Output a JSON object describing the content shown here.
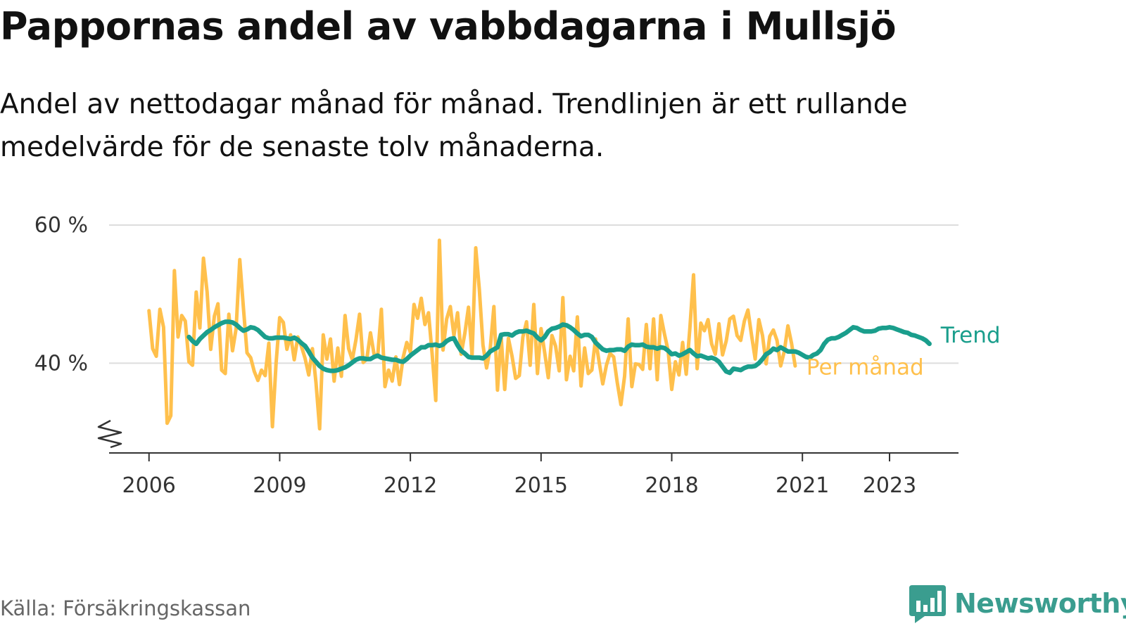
{
  "title": "Pappornas andel av vabbdagarna i Mullsjö",
  "subtitle": "Andel av nettodagar månad för månad. Trendlinjen är ett rullande medelvärde för de senaste tolv månaderna.",
  "source": "Källa: Försäkringskassan",
  "logo": {
    "text": "Newsworthy",
    "icon": "newsworthy-bar-chart-icon",
    "color": "#3a9d8f"
  },
  "colors": {
    "monthly": "#ffc04c",
    "trend": "#1a9e8c",
    "grid": "#dddddd",
    "axis": "#333333"
  },
  "chart_data": {
    "type": "line",
    "xlabel": "",
    "ylabel": "",
    "ylim": [
      27,
      60
    ],
    "xlim": [
      "2005-02",
      "2024-08"
    ],
    "y_ticks": [
      {
        "value": 40,
        "label": "40 %"
      },
      {
        "value": 60,
        "label": "60 %"
      }
    ],
    "x_ticks": [
      {
        "value": "2006-01",
        "label": "2006"
      },
      {
        "value": "2009-01",
        "label": "2009"
      },
      {
        "value": "2012-01",
        "label": "2012"
      },
      {
        "value": "2015-01",
        "label": "2015"
      },
      {
        "value": "2018-01",
        "label": "2018"
      },
      {
        "value": "2021-01",
        "label": "2021"
      },
      {
        "value": "2023-01",
        "label": "2023"
      }
    ],
    "y_axis_break": true,
    "grid": "horizontal",
    "series": [
      {
        "name": "Per månad",
        "start": "2006-01",
        "frequency": "monthly",
        "values": [
          47.6,
          42.1,
          41.0,
          47.8,
          45.2,
          31.3,
          32.4,
          53.4,
          43.8,
          46.9,
          46.1,
          40.2,
          39.7,
          50.3,
          45.1,
          55.2,
          50.3,
          42.0,
          46.8,
          48.6,
          39.0,
          38.5,
          47.1,
          41.8,
          45.0,
          55.0,
          48.0,
          41.5,
          40.8,
          38.8,
          37.5,
          39.0,
          38.2,
          42.9,
          30.8,
          40.0,
          46.6,
          45.9,
          42.0,
          44.1,
          40.5,
          43.8,
          42.4,
          40.7,
          38.3,
          42.1,
          37.2,
          30.5,
          44.1,
          40.6,
          43.5,
          37.4,
          42.2,
          38.1,
          46.9,
          42.1,
          40.5,
          43.4,
          47.1,
          40.1,
          40.6,
          44.4,
          41.3,
          41.0,
          47.8,
          36.6,
          39.0,
          37.4,
          40.9,
          36.9,
          40.8,
          43.0,
          41.6,
          48.5,
          46.5,
          49.4,
          45.6,
          47.3,
          41.3,
          34.6,
          57.8,
          41.9,
          46.4,
          48.2,
          44.0,
          47.3,
          41.3,
          44.3,
          48.1,
          41.0,
          56.7,
          50.7,
          42.6,
          39.3,
          42.1,
          48.2,
          36.1,
          43.8,
          36.2,
          43.6,
          41.0,
          37.8,
          38.2,
          43.8,
          46.0,
          39.7,
          48.5,
          38.5,
          45.0,
          41.5,
          37.9,
          44.0,
          42.5,
          38.9,
          49.5,
          37.6,
          41.0,
          38.9,
          46.7,
          36.7,
          42.2,
          38.5,
          39.0,
          43.5,
          40.2,
          37.0,
          39.7,
          41.4,
          40.9,
          37.2,
          34.0,
          38.1,
          46.4,
          36.6,
          39.9,
          39.8,
          39.1,
          45.6,
          39.2,
          46.4,
          37.6,
          46.9,
          44.2,
          41.8,
          36.2,
          40.2,
          38.3,
          43.0,
          38.4,
          45.1,
          52.8,
          39.2,
          45.8,
          44.7,
          46.3,
          42.8,
          41.3,
          45.7,
          41.2,
          43.2,
          46.4,
          46.8,
          44.0,
          43.3,
          46.1,
          47.7,
          44.0,
          40.6,
          46.3,
          44.0,
          39.9,
          43.9,
          44.8,
          43.3,
          39.6,
          41.7,
          45.4,
          42.9,
          39.6
        ]
      },
      {
        "name": "Trend",
        "start": "2006-12",
        "frequency": "monthly",
        "values": [
          43.8,
          43.2,
          42.8,
          43.5,
          44.0,
          44.5,
          44.8,
          45.2,
          45.5,
          45.8,
          46.0,
          46.0,
          45.9,
          45.6,
          45.1,
          44.7,
          44.9,
          45.2,
          45.1,
          44.8,
          44.3,
          43.8,
          43.6,
          43.6,
          43.7,
          43.7,
          43.7,
          43.6,
          43.5,
          43.7,
          43.4,
          42.9,
          42.5,
          41.7,
          40.8,
          40.2,
          39.6,
          39.2,
          39.0,
          38.9,
          38.9,
          39.0,
          39.2,
          39.4,
          39.7,
          40.1,
          40.5,
          40.7,
          40.7,
          40.6,
          40.6,
          40.9,
          41.1,
          40.8,
          40.7,
          40.6,
          40.5,
          40.5,
          40.3,
          40.2,
          40.6,
          41.1,
          41.5,
          41.9,
          42.3,
          42.3,
          42.6,
          42.6,
          42.7,
          42.5,
          42.7,
          43.2,
          43.5,
          43.6,
          42.6,
          41.8,
          41.4,
          40.9,
          40.8,
          40.8,
          40.8,
          40.7,
          41.1,
          41.7,
          42.0,
          42.3,
          44.1,
          44.2,
          44.2,
          44.0,
          44.4,
          44.6,
          44.6,
          44.7,
          44.5,
          44.3,
          43.7,
          43.3,
          43.8,
          44.6,
          45.0,
          45.1,
          45.3,
          45.6,
          45.5,
          45.2,
          44.8,
          44.3,
          43.9,
          44.1,
          44.1,
          43.8,
          43.0,
          42.5,
          42.0,
          41.8,
          41.9,
          41.9,
          42.0,
          42.0,
          41.8,
          42.4,
          42.7,
          42.6,
          42.6,
          42.7,
          42.4,
          42.3,
          42.3,
          42.1,
          42.3,
          42.2,
          41.8,
          41.3,
          41.4,
          41.1,
          41.3,
          41.6,
          41.9,
          41.4,
          41.0,
          41.1,
          40.9,
          40.7,
          40.8,
          40.6,
          40.2,
          39.5,
          38.8,
          38.6,
          39.2,
          39.1,
          39.0,
          39.3,
          39.5,
          39.5,
          39.6,
          40.0,
          40.6,
          41.3,
          41.6,
          42.1,
          41.9,
          42.3,
          42.0,
          41.7,
          41.7,
          41.7,
          41.5,
          41.2,
          40.9,
          40.8,
          41.2,
          41.4,
          41.9,
          42.8,
          43.4,
          43.6,
          43.6,
          43.8,
          44.1,
          44.4,
          44.8,
          45.2,
          45.1,
          44.8,
          44.6,
          44.6,
          44.6,
          44.7,
          45.0,
          45.1,
          45.1,
          45.2,
          45.1,
          44.9,
          44.7,
          44.5,
          44.4,
          44.1,
          44.0,
          43.8,
          43.6,
          43.3,
          42.8
        ]
      }
    ]
  }
}
